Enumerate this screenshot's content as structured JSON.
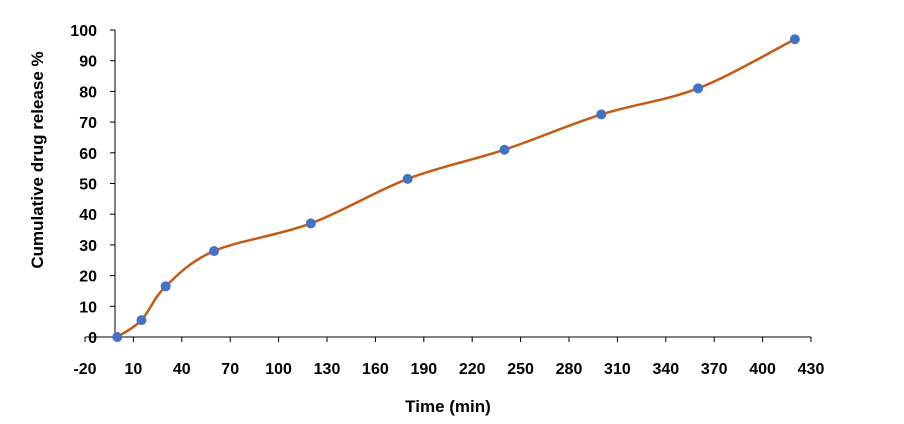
{
  "chart_data": {
    "type": "scatter",
    "xlabel": "Time (min)",
    "ylabel": "Cumulative drug release %",
    "xlim": [
      -20,
      430
    ],
    "ylim": [
      0,
      100
    ],
    "x_ticks": [
      -20,
      10,
      40,
      70,
      100,
      130,
      160,
      190,
      220,
      250,
      280,
      310,
      340,
      370,
      400,
      430
    ],
    "y_ticks": [
      0,
      10,
      20,
      30,
      40,
      50,
      60,
      70,
      80,
      90,
      100
    ],
    "grid": false,
    "smoothed_line": true,
    "colors": {
      "line": "#C55A11",
      "marker": "#4472C4",
      "axis": "#000000"
    },
    "series": [
      {
        "x": [
          0,
          15,
          30,
          60,
          120,
          180,
          240,
          300,
          360,
          420
        ],
        "y": [
          0,
          5.5,
          16.5,
          28,
          37,
          51.5,
          61,
          72.5,
          81,
          97
        ]
      }
    ]
  }
}
